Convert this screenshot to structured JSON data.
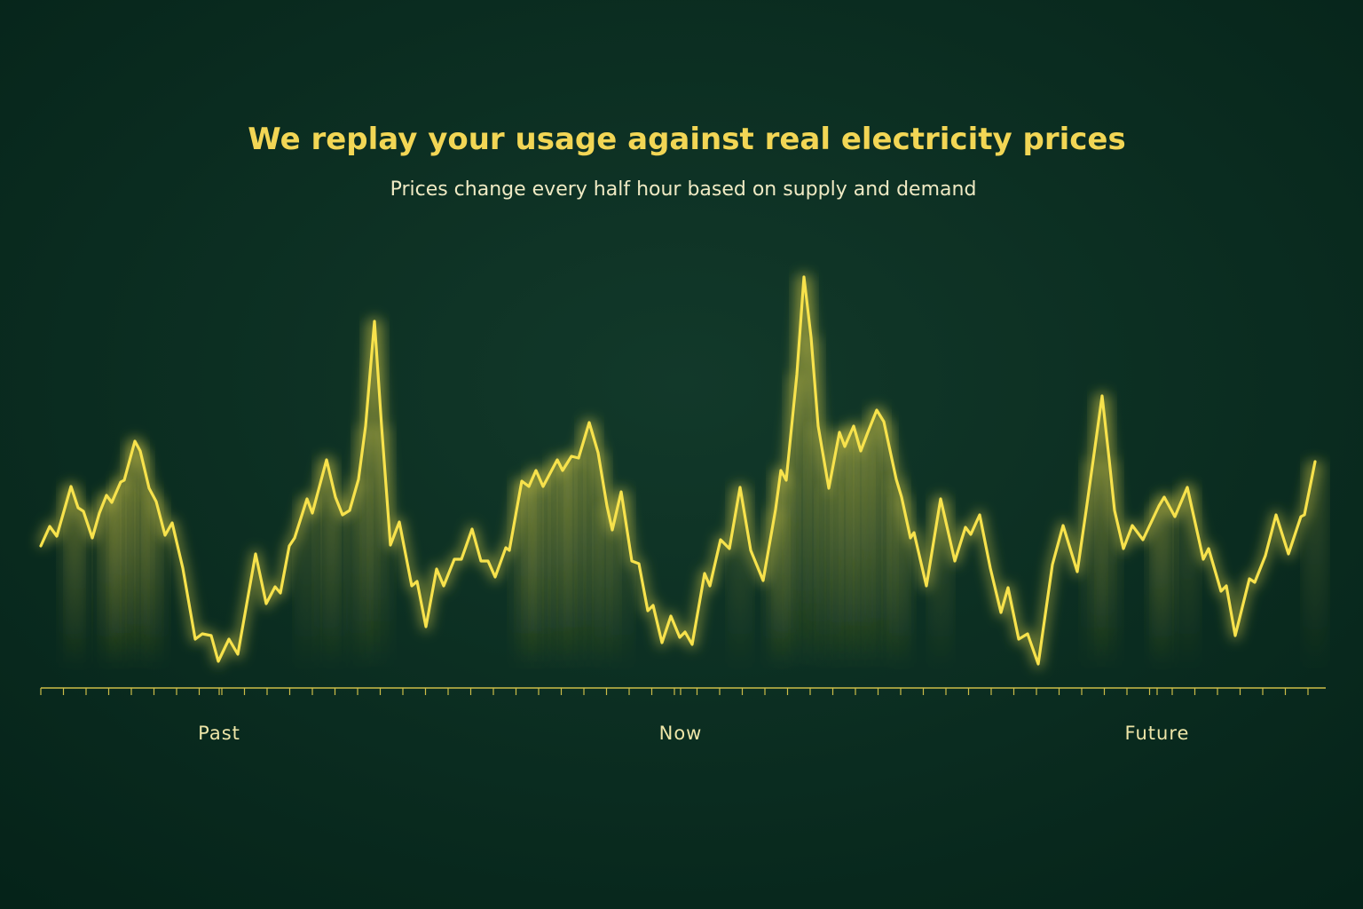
{
  "chart_data": {
    "type": "line",
    "title": "We replay your usage against real electricity prices",
    "subtitle": "Prices change every half hour based on supply and demand",
    "x": [
      0,
      2.5,
      4.5,
      8.5,
      10.5,
      12,
      14.5,
      16.5,
      18.5,
      20,
      22.5,
      23.5,
      26.5,
      28,
      30.5,
      32.5,
      35,
      37,
      40,
      43.5,
      45.5,
      48,
      50,
      53,
      55.5,
      60.5,
      63.5,
      66,
      67.5,
      70,
      71.5,
      75,
      76.5,
      80.5,
      83,
      85,
      87,
      89.5,
      91.5,
      94,
      96,
      98.5,
      101,
      104.5,
      106,
      108.5,
      111.5,
      113.5,
      116.5,
      118.5,
      121.5,
      124,
      126,
      128,
      131,
      132,
      135.5,
      137.5,
      139.5,
      141.5,
      145.5,
      147,
      149.5,
      151.5,
      154.5,
      157,
      159.5,
      161,
      163.5,
      166.5,
      168.5,
      171,
      172.5,
      175,
      177.5,
      180,
      181.5,
      183.5,
      187,
      188.5,
      191.5,
      194,
      197,
      200,
      203.5,
      207,
      208.5,
      210,
      213,
      215,
      217,
      219,
      222,
      225,
      226.5,
      229,
      231,
      233,
      235.5,
      237.5,
      241,
      242.5,
      245,
      246,
      249.5,
      253.5,
      257.5,
      260.5,
      262,
      264.5,
      267.5,
      270.5,
      272.5,
      275.5,
      278,
      281,
      285,
      288,
      292,
      294.5,
      296.5,
      299,
      301,
      302.5,
      305,
      307.5,
      310.5,
      315,
      316.5,
      319.5,
      323,
      327.5,
      329,
      332.5,
      334,
      336.5,
      340.5,
      342,
      345,
      348,
      351.5,
      355,
      356,
      359
    ],
    "series": [
      {
        "color": "#f7e24c",
        "values": [
          32,
          36.4,
          34.2,
          45.4,
          40.6,
          39.8,
          33.8,
          39.4,
          43.4,
          41.8,
          46.4,
          46.8,
          55.6,
          53.4,
          45,
          42,
          34.4,
          37.2,
          27,
          11,
          12.2,
          11.8,
          6,
          11,
          7.6,
          30.2,
          19,
          22.8,
          21.4,
          32,
          33.8,
          42.6,
          39.4,
          51.4,
          43,
          39,
          40,
          47,
          59,
          82.6,
          59,
          32.2,
          37.4,
          23,
          24,
          13.8,
          26.8,
          23,
          29,
          29,
          35.8,
          28.6,
          28.6,
          25,
          31.6,
          31,
          46.6,
          45.4,
          49,
          45.4,
          51.4,
          49,
          52.2,
          51.8,
          59.8,
          53,
          41,
          35.6,
          44.2,
          28.6,
          28,
          17.4,
          18.6,
          10.2,
          16.2,
          11.4,
          12.6,
          9.8,
          25.8,
          23,
          33.4,
          31.4,
          45.2,
          31,
          24.2,
          40.2,
          49,
          46.8,
          70.6,
          92.6,
          79,
          59,
          45,
          57.6,
          54.4,
          59,
          53.4,
          57.6,
          62.6,
          60,
          47,
          43,
          33.8,
          35,
          23,
          42.6,
          28.6,
          36.2,
          34.6,
          39,
          27,
          17,
          22.6,
          11,
          12.2,
          5.4,
          27.8,
          36.6,
          26.2,
          40,
          51.4,
          65.8,
          51.4,
          40,
          31.4,
          36.6,
          33.4,
          41,
          43,
          38.6,
          45.2,
          29,
          31.4,
          21.8,
          23,
          11.8,
          24.6,
          23.8,
          29.8,
          39,
          30.2,
          38.6,
          39,
          51
        ]
      }
    ],
    "xlim": [
      0,
      362
    ],
    "ylim": [
      0,
      100
    ],
    "xticks": [
      {
        "value": 50.25,
        "label": "Past"
      },
      {
        "value": 180.25,
        "label": "Now"
      },
      {
        "value": 314.5,
        "label": "Future"
      }
    ]
  }
}
